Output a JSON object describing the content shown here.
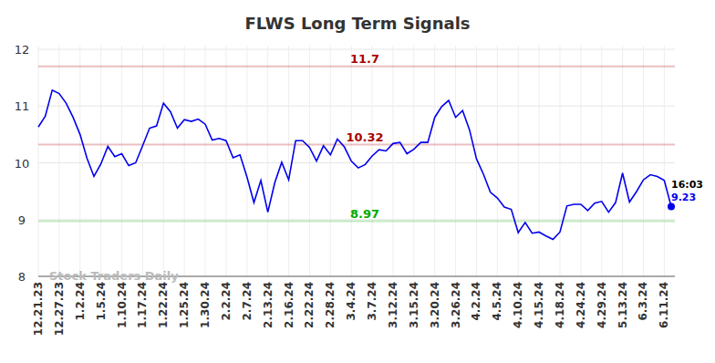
{
  "chart_data": {
    "type": "line",
    "title": "FLWS Long Term Signals",
    "categories": [
      "12.21.23",
      null,
      null,
      "12.27.23",
      null,
      null,
      "1.2.24",
      null,
      null,
      "1.5.24",
      null,
      null,
      "1.10.24",
      null,
      null,
      "1.17.24",
      null,
      null,
      "1.22.24",
      null,
      null,
      "1.25.24",
      null,
      null,
      "1.30.24",
      null,
      null,
      "2.2.24",
      null,
      null,
      "2.7.24",
      null,
      null,
      "2.13.24",
      null,
      null,
      "2.16.24",
      null,
      null,
      "2.22.24",
      null,
      null,
      "2.28.24",
      null,
      null,
      "3.4.24",
      null,
      null,
      "3.7.24",
      null,
      null,
      "3.12.24",
      null,
      null,
      "3.15.24",
      null,
      null,
      "3.20.24",
      null,
      null,
      "3.26.24",
      null,
      null,
      "4.2.24",
      null,
      null,
      "4.5.24",
      null,
      null,
      "4.10.24",
      null,
      null,
      "4.15.24",
      null,
      null,
      "4.18.24",
      null,
      null,
      "4.24.24",
      null,
      null,
      "4.29.24",
      null,
      null,
      "5.13.24",
      null,
      null,
      "6.3.24",
      null,
      null,
      "6.11.24",
      null
    ],
    "series": [
      {
        "name": "FLWS",
        "color": "#0000ee",
        "values": [
          10.63,
          10.82,
          11.28,
          11.22,
          11.05,
          10.8,
          10.5,
          10.08,
          9.76,
          9.98,
          10.29,
          10.11,
          10.16,
          9.95,
          10.0,
          10.3,
          10.61,
          10.65,
          11.05,
          10.9,
          10.61,
          10.76,
          10.73,
          10.77,
          10.68,
          10.4,
          10.43,
          10.39,
          10.09,
          10.14,
          9.75,
          9.3,
          9.69,
          9.13,
          9.65,
          10.01,
          9.7,
          10.39,
          10.39,
          10.27,
          10.03,
          10.3,
          10.14,
          10.42,
          10.28,
          10.03,
          9.91,
          9.97,
          10.12,
          10.23,
          10.21,
          10.34,
          10.36,
          10.16,
          10.24,
          10.36,
          10.36,
          10.8,
          10.99,
          11.1,
          10.8,
          10.92,
          10.58,
          10.07,
          9.8,
          9.48,
          9.38,
          9.22,
          9.18,
          8.77,
          8.95,
          8.76,
          8.78,
          8.71,
          8.65,
          8.78,
          9.24,
          9.27,
          9.27,
          9.16,
          9.29,
          9.32,
          9.13,
          9.3,
          9.82,
          9.31,
          9.49,
          9.7,
          9.79,
          9.76,
          9.69,
          9.23
        ]
      }
    ],
    "ylim": [
      8,
      12
    ],
    "yticks": [
      8,
      9,
      10,
      11,
      12
    ],
    "grid": true,
    "levels": [
      {
        "value": 11.7,
        "label": "11.7",
        "color": "#aa0000"
      },
      {
        "value": 10.32,
        "label": "10.32",
        "color": "#aa0000"
      },
      {
        "value": 8.97,
        "label": "8.97",
        "color": "#00aa00"
      }
    ],
    "annotation": "16:03",
    "watermark": "Stock Traders Daily"
  }
}
